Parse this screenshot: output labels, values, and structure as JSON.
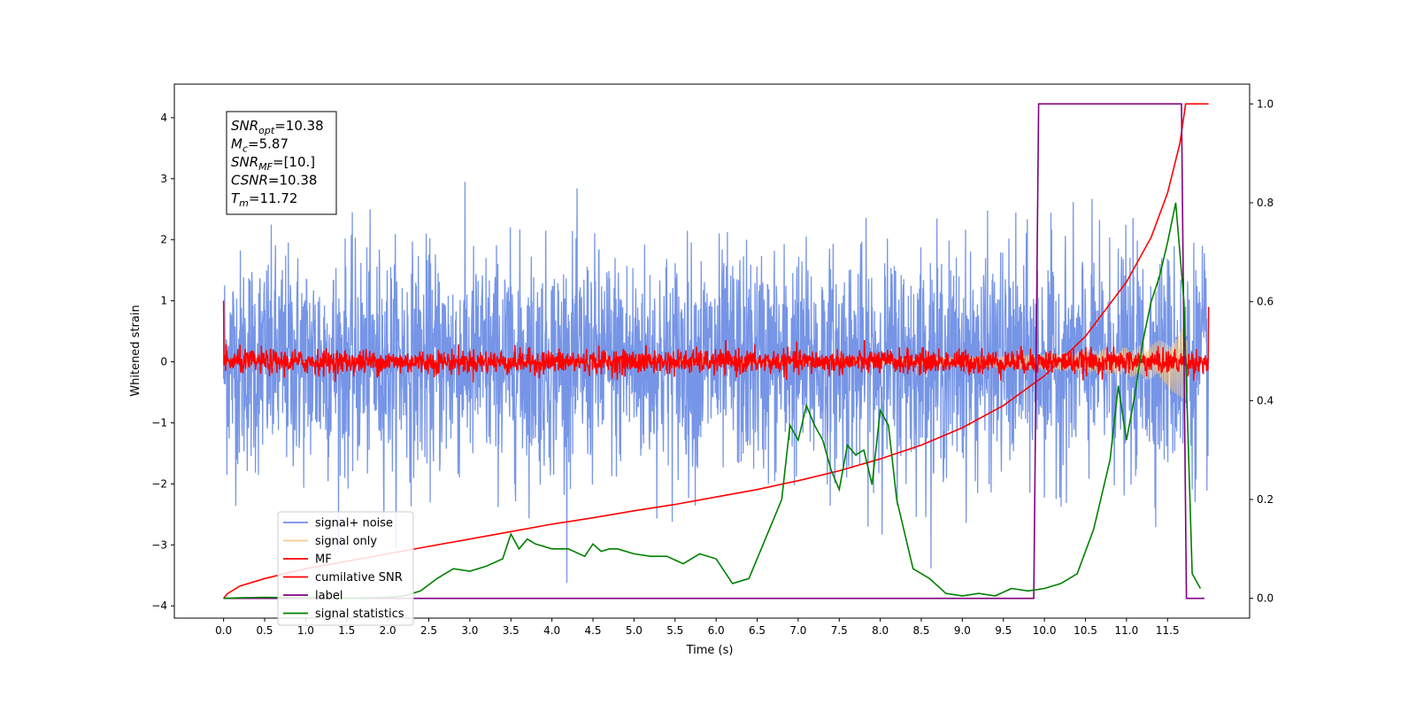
{
  "chart_data": {
    "type": "line",
    "xlabel": "Time (s)",
    "ylabel": "Whitened strain",
    "xlim": [
      -0.6,
      12.5
    ],
    "ylim": [
      -4.2,
      4.55
    ],
    "y2lim": [
      -0.04,
      1.04
    ],
    "x_ticks": [
      "0.0",
      "0.5",
      "1.0",
      "1.5",
      "2.0",
      "2.5",
      "3.0",
      "3.5",
      "4.0",
      "4.5",
      "5.0",
      "5.5",
      "6.0",
      "6.5",
      "7.0",
      "7.5",
      "8.0",
      "8.5",
      "9.0",
      "9.5",
      "10.0",
      "10.5",
      "11.0",
      "11.5"
    ],
    "y_ticks": [
      "4",
      "3",
      "2",
      "1",
      "0",
      "−1",
      "−2",
      "−3",
      "−4"
    ],
    "y2_ticks": [
      "1.0",
      "0.8",
      "0.6",
      "0.4",
      "0.2",
      "0.0"
    ],
    "annotation": {
      "lines": [
        {
          "base": "SNR",
          "sub": "opt",
          "value": "=10.38"
        },
        {
          "base": "M",
          "sub": "c",
          "value": "=5.87"
        },
        {
          "base": "SNR",
          "sub": "MF",
          "value": "=[10.]"
        },
        {
          "base": "CSNR",
          "sub": "",
          "value": "=10.38"
        },
        {
          "base": "T",
          "sub": "m",
          "value": "=11.72"
        }
      ]
    },
    "legend": {
      "position": "lower-left",
      "entries": [
        {
          "label": "signal+ noise",
          "color": "#6f8fe6"
        },
        {
          "label": "signal only",
          "color": "#f5c98a"
        },
        {
          "label": "MF",
          "color": "#ff0000"
        },
        {
          "label": "cumilative SNR",
          "color": "#ff0000"
        },
        {
          "label": "label",
          "color": "#800080"
        },
        {
          "label": "signal statistics",
          "color": "#008000"
        }
      ]
    },
    "series": [
      {
        "name": "signal+ noise",
        "axis": "left",
        "color": "#6f8fe6",
        "noise_sigma": 1.0,
        "x_range": [
          0.0,
          12.0
        ],
        "samples": 3000
      },
      {
        "name": "signal only",
        "axis": "left",
        "color": "#f5c98a",
        "envelope": {
          "t": [
            0.0,
            8.0,
            9.5,
            10.0,
            10.5,
            11.0,
            11.3,
            11.5,
            11.65,
            11.72,
            11.75
          ],
          "amp": [
            0.01,
            0.05,
            0.1,
            0.14,
            0.18,
            0.24,
            0.3,
            0.4,
            0.6,
            0.72,
            0.0
          ]
        }
      },
      {
        "name": "MF",
        "axis": "left",
        "color": "#ff0000",
        "noise_sigma": 0.1,
        "x_range": [
          0.0,
          12.0
        ],
        "samples": 2400,
        "start_value": 1.0,
        "end_value": 0.9
      },
      {
        "name": "cumilative SNR",
        "axis": "right",
        "color": "#ff0000",
        "x": [
          0.0,
          0.05,
          0.2,
          0.5,
          1.0,
          1.5,
          2.0,
          2.5,
          3.0,
          3.5,
          4.0,
          4.5,
          5.0,
          5.5,
          6.0,
          6.5,
          7.0,
          7.5,
          8.0,
          8.5,
          9.0,
          9.5,
          10.0,
          10.5,
          11.0,
          11.3,
          11.5,
          11.65,
          11.72,
          12.0
        ],
        "y": [
          0.0,
          0.01,
          0.025,
          0.04,
          0.06,
          0.075,
          0.09,
          0.105,
          0.12,
          0.135,
          0.15,
          0.163,
          0.177,
          0.19,
          0.205,
          0.22,
          0.238,
          0.258,
          0.282,
          0.31,
          0.345,
          0.39,
          0.45,
          0.53,
          0.64,
          0.73,
          0.82,
          0.92,
          1.0,
          1.0
        ]
      },
      {
        "name": "label",
        "axis": "right",
        "color": "#800080",
        "x": [
          0.0,
          9.87,
          9.93,
          11.67,
          11.73,
          11.95
        ],
        "y": [
          0.0,
          0.0,
          1.0,
          1.0,
          0.0,
          0.0
        ]
      },
      {
        "name": "signal statistics",
        "axis": "right",
        "color": "#008000",
        "x": [
          0.0,
          0.2,
          0.5,
          1.0,
          1.5,
          2.0,
          2.2,
          2.4,
          2.6,
          2.8,
          3.0,
          3.2,
          3.4,
          3.5,
          3.6,
          3.7,
          3.8,
          4.0,
          4.2,
          4.4,
          4.5,
          4.6,
          4.7,
          4.8,
          5.0,
          5.2,
          5.4,
          5.6,
          5.8,
          6.0,
          6.2,
          6.4,
          6.6,
          6.8,
          6.9,
          7.0,
          7.1,
          7.2,
          7.3,
          7.4,
          7.5,
          7.6,
          7.7,
          7.8,
          7.9,
          8.0,
          8.1,
          8.2,
          8.4,
          8.6,
          8.8,
          9.0,
          9.2,
          9.4,
          9.6,
          9.8,
          10.0,
          10.2,
          10.4,
          10.6,
          10.8,
          10.9,
          11.0,
          11.1,
          11.2,
          11.3,
          11.4,
          11.5,
          11.6,
          11.7,
          11.8,
          11.9
        ],
        "y": [
          0.0,
          0.001,
          0.002,
          0.001,
          0.0,
          0.002,
          0.005,
          0.015,
          0.04,
          0.06,
          0.055,
          0.065,
          0.08,
          0.13,
          0.1,
          0.12,
          0.11,
          0.1,
          0.1,
          0.085,
          0.11,
          0.095,
          0.1,
          0.1,
          0.09,
          0.085,
          0.085,
          0.07,
          0.09,
          0.08,
          0.03,
          0.04,
          0.12,
          0.2,
          0.35,
          0.32,
          0.39,
          0.35,
          0.32,
          0.26,
          0.22,
          0.31,
          0.29,
          0.3,
          0.23,
          0.38,
          0.35,
          0.2,
          0.06,
          0.04,
          0.01,
          0.005,
          0.01,
          0.005,
          0.02,
          0.015,
          0.02,
          0.03,
          0.05,
          0.14,
          0.28,
          0.43,
          0.32,
          0.41,
          0.52,
          0.6,
          0.65,
          0.72,
          0.8,
          0.6,
          0.05,
          0.02
        ]
      }
    ]
  }
}
